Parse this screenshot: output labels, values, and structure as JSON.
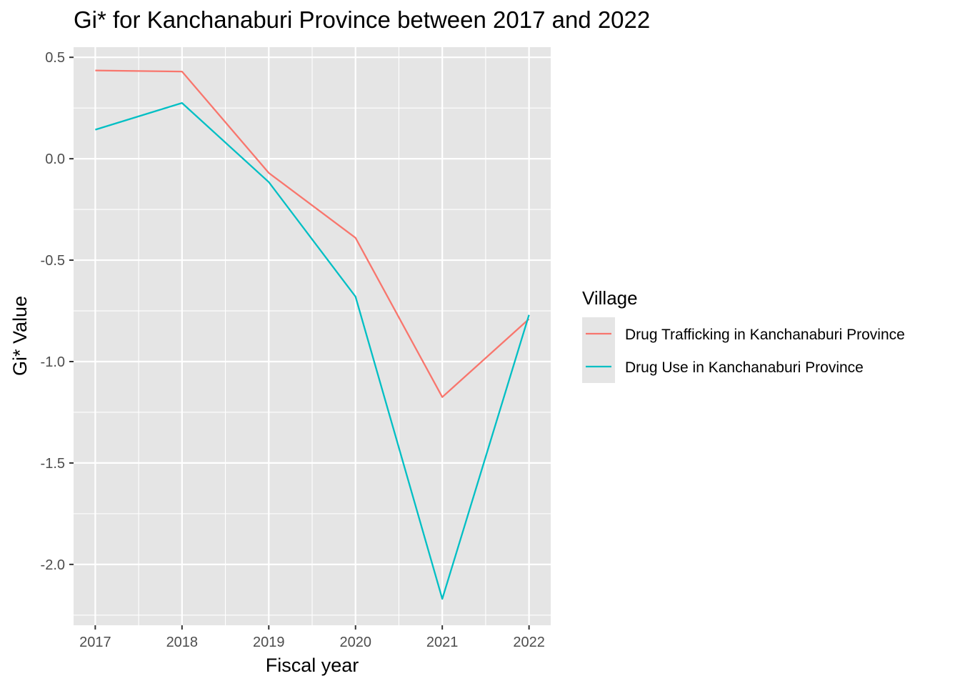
{
  "chart_data": {
    "type": "line",
    "title": "Gi* for Kanchanaburi Province between 2017 and 2022",
    "xlabel": "Fiscal year",
    "ylabel": "Gi* Value",
    "x": [
      "2017",
      "2018",
      "2019",
      "2020",
      "2021",
      "2022"
    ],
    "xlim": [
      2016.75,
      2022.25
    ],
    "ylim": [
      -2.3,
      0.55
    ],
    "yticks": [
      {
        "value": 0.5,
        "label": "0.5"
      },
      {
        "value": 0.0,
        "label": "0.0"
      },
      {
        "value": -0.5,
        "label": "-0.5"
      },
      {
        "value": -1.0,
        "label": "-1.0"
      },
      {
        "value": -1.5,
        "label": "-1.5"
      },
      {
        "value": -2.0,
        "label": "-2.0"
      }
    ],
    "grid": true,
    "background": "#e5e5e5",
    "legend": {
      "title": "Village",
      "position": "right"
    },
    "series": [
      {
        "name": "Drug Trafficking in Kanchanaburi Province",
        "color": "#f8766d",
        "values": [
          0.435,
          0.43,
          -0.07,
          -0.39,
          -1.175,
          -0.79
        ]
      },
      {
        "name": "Drug Use in Kanchanaburi Province",
        "color": "#00bfc4",
        "values": [
          0.143,
          0.275,
          -0.115,
          -0.68,
          -2.17,
          -0.77
        ]
      }
    ]
  }
}
